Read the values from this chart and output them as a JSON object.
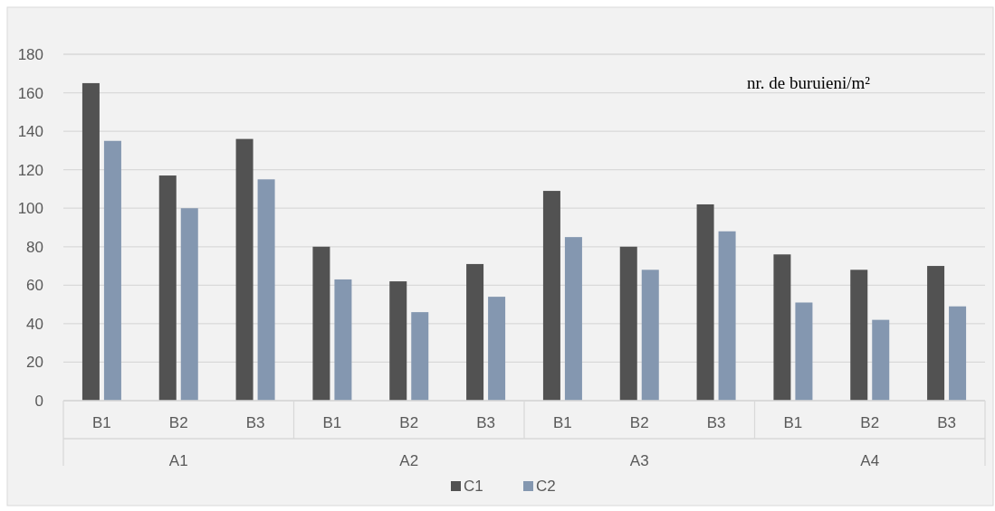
{
  "chart_data": {
    "type": "bar",
    "ylabel": "nr. de buruieni/m²",
    "categories": [
      "B1",
      "B2",
      "B3",
      "B1",
      "B2",
      "B3",
      "B1",
      "B2",
      "B3",
      "B1",
      "B2",
      "B3"
    ],
    "annotations": [
      "A1",
      "A2",
      "A3",
      "A4"
    ],
    "series": [
      {
        "name": "C1",
        "color": "#525252",
        "values": [
          165,
          117,
          136,
          80,
          62,
          71,
          109,
          80,
          102,
          76,
          68,
          70
        ]
      },
      {
        "name": "C2",
        "color": "#8497b0",
        "values": [
          135,
          100,
          115,
          63,
          46,
          54,
          85,
          68,
          88,
          51,
          42,
          49
        ]
      }
    ],
    "ylim": [
      0,
      180
    ],
    "yticks": [
      0,
      20,
      40,
      60,
      80,
      100,
      120,
      140,
      160,
      180
    ],
    "grid": "y",
    "legend": "bottom"
  }
}
